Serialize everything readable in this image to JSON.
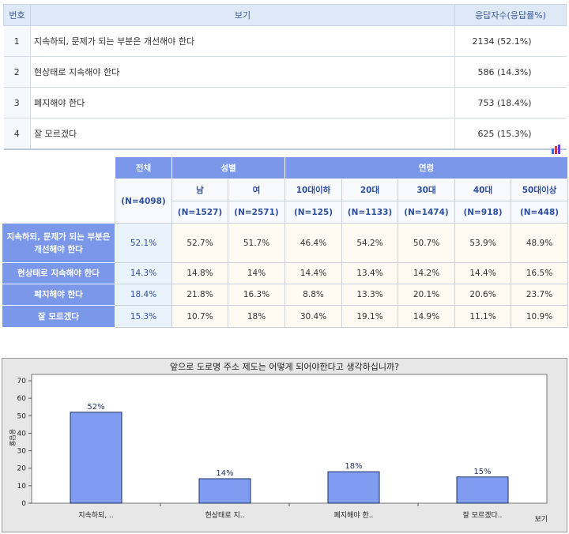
{
  "options_table": {
    "headers": {
      "number": "번호",
      "option": "보기",
      "count": "응답자수(응답률%)"
    },
    "rows": [
      {
        "no": "1",
        "label": "지속하되, 문제가 되는 부분은 개선해야 한다",
        "value": "2134 (52.1%)"
      },
      {
        "no": "2",
        "label": "현상태로 지속해야 한다",
        "value": "586 (14.3%)"
      },
      {
        "no": "3",
        "label": "폐지해야 한다",
        "value": "753 (18.4%)"
      },
      {
        "no": "4",
        "label": "잘 모르겠다",
        "value": "625 (15.3%)"
      }
    ]
  },
  "chart_icon": "bar-chart-icon",
  "cross_table": {
    "total_label": "전체",
    "total_n": "(N=4098)",
    "gender_label": "성별",
    "age_label": "연령",
    "sub_headers": [
      "남",
      "여",
      "10대이하",
      "20대",
      "30대",
      "40대",
      "50대이상"
    ],
    "sub_n": [
      "(N=1527)",
      "(N=2571)",
      "(N=125)",
      "(N=1133)",
      "(N=1474)",
      "(N=918)",
      "(N=448)"
    ],
    "rows": [
      {
        "label": "지속하되, 문제가 되는 부분은 개선해야 한다",
        "total": "52.1%",
        "cells": [
          "52.7%",
          "51.7%",
          "46.4%",
          "54.2%",
          "50.7%",
          "53.9%",
          "48.9%"
        ]
      },
      {
        "label": "현상태로 지속해야 한다",
        "total": "14.3%",
        "cells": [
          "14.8%",
          "14%",
          "14.4%",
          "13.4%",
          "14.2%",
          "14.4%",
          "16.5%"
        ]
      },
      {
        "label": "폐지해야 한다",
        "total": "18.4%",
        "cells": [
          "21.8%",
          "16.3%",
          "8.8%",
          "13.3%",
          "20.1%",
          "20.6%",
          "23.7%"
        ]
      },
      {
        "label": "잘 모르겠다",
        "total": "15.3%",
        "cells": [
          "10.7%",
          "18%",
          "30.4%",
          "19.1%",
          "14.9%",
          "11.1%",
          "10.9%"
        ]
      }
    ]
  },
  "chart_data": {
    "type": "bar",
    "title": "앞으로 도로명 주소 제도는 어떻게 되어야한다고 생각하십니까?",
    "xlabel": "보기",
    "ylabel": "응답율",
    "categories": [
      "지속하되, ..",
      "현상태로 지..",
      "폐지해야 한..",
      "잘 모르겠다.."
    ],
    "values": [
      52,
      14,
      18,
      15
    ],
    "data_labels": [
      "52%",
      "14%",
      "18%",
      "15%"
    ],
    "ylim": [
      0,
      70
    ],
    "yticks": [
      0,
      10,
      20,
      30,
      40,
      50,
      60,
      70
    ],
    "grid": false,
    "bar_color": "#7f9cf0"
  }
}
